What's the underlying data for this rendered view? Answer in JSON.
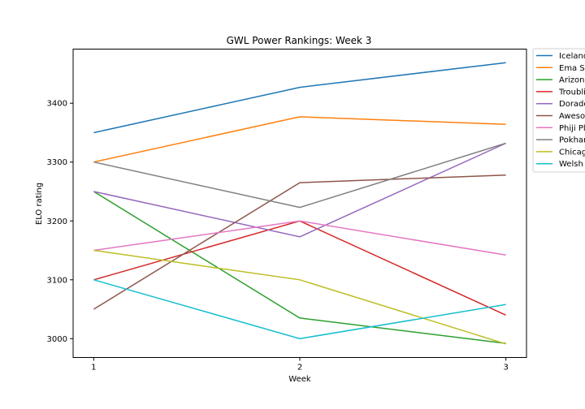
{
  "chart_data": {
    "type": "line",
    "title": "GWL Power Rankings: Week 3",
    "xlabel": "Week",
    "ylabel": "ELO rating",
    "x": [
      1,
      2,
      3
    ],
    "xticks": [
      "1",
      "2",
      "3"
    ],
    "yticks": [
      "3000",
      "3100",
      "3200",
      "3300",
      "3400"
    ],
    "xlim": [
      0.9,
      3.1
    ],
    "ylim": [
      2968,
      3492
    ],
    "grid": false,
    "legend_position": "outside-top-right",
    "series": [
      {
        "name": "Iceland",
        "color": "#1f77b4",
        "values": [
          3350,
          3427,
          3469
        ]
      },
      {
        "name": "Ema S",
        "color": "#ff7f0e",
        "values": [
          3300,
          3377,
          3364
        ]
      },
      {
        "name": "Arizon",
        "color": "#2ca02c",
        "values": [
          3250,
          3035,
          2992
        ]
      },
      {
        "name": "Troubli",
        "color": "#d62728",
        "values": [
          3100,
          3200,
          3040
        ]
      },
      {
        "name": "Dorado",
        "color": "#9467bd",
        "values": [
          3250,
          3173,
          3332
        ]
      },
      {
        "name": "Aweso",
        "color": "#8c564b",
        "values": [
          3050,
          3265,
          3278
        ]
      },
      {
        "name": "Phiji Pl",
        "color": "#e377c2",
        "values": [
          3150,
          3200,
          3142
        ]
      },
      {
        "name": "Pokhar",
        "color": "#7f7f7f",
        "values": [
          3300,
          3223,
          3332
        ]
      },
      {
        "name": "Chicag",
        "color": "#bcbd22",
        "values": [
          3150,
          3100,
          2991
        ]
      },
      {
        "name": "Welsh",
        "color": "#17becf",
        "values": [
          3100,
          3000,
          3058
        ]
      }
    ]
  }
}
